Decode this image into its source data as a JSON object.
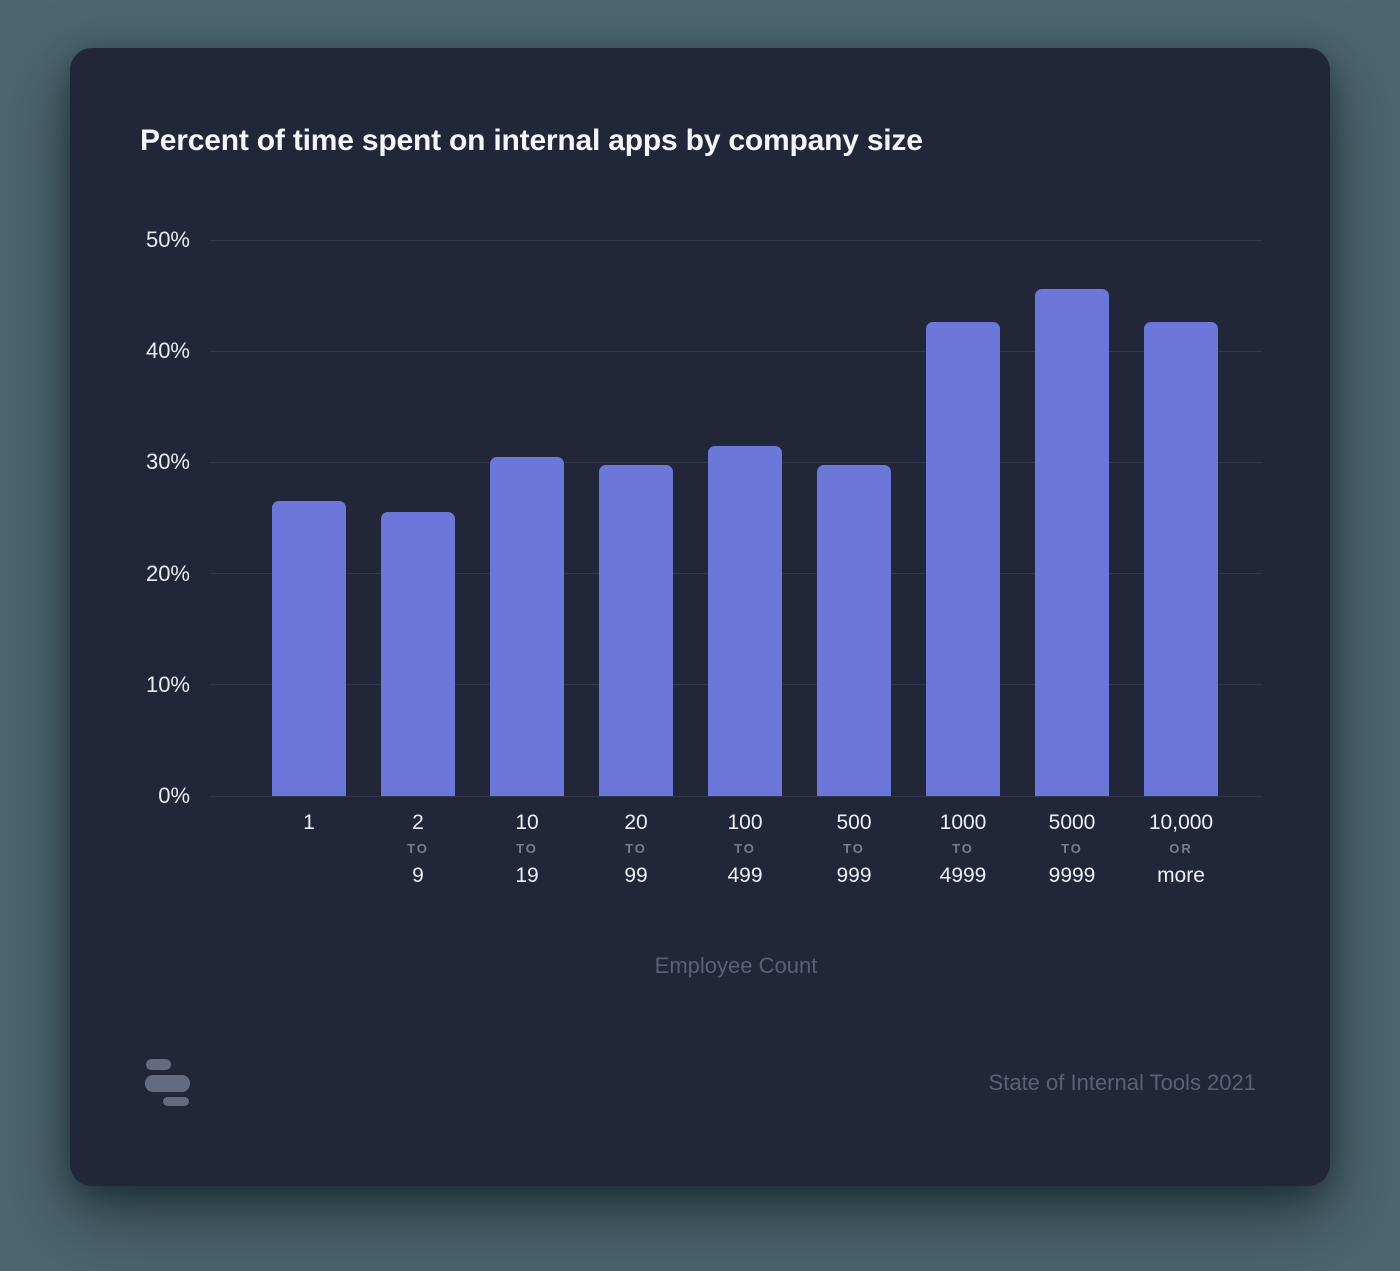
{
  "card": {
    "title": "Percent of time spent on internal apps by company size",
    "source": "State of Internal Tools 2021",
    "logo_icon": "retool-logo-icon"
  },
  "chart_data": {
    "type": "bar",
    "title": "Percent of time spent on internal apps by company size",
    "xlabel": "Employee Count",
    "ylabel": "Percent of time spent on internal apps",
    "ylim": [
      0,
      50
    ],
    "ytick_labels": [
      "0%",
      "10%",
      "20%",
      "30%",
      "40%",
      "50%"
    ],
    "grid": true,
    "legend": "none",
    "categories": [
      {
        "line1": "1",
        "connector": "",
        "line2": ""
      },
      {
        "line1": "2",
        "connector": "TO",
        "line2": "9"
      },
      {
        "line1": "10",
        "connector": "TO",
        "line2": "19"
      },
      {
        "line1": "20",
        "connector": "TO",
        "line2": "99"
      },
      {
        "line1": "100",
        "connector": "TO",
        "line2": "499"
      },
      {
        "line1": "500",
        "connector": "TO",
        "line2": "999"
      },
      {
        "line1": "1000",
        "connector": "TO",
        "line2": "4999"
      },
      {
        "line1": "5000",
        "connector": "TO",
        "line2": "9999"
      },
      {
        "line1": "10,000",
        "connector": "OR",
        "line2": "more"
      }
    ],
    "values": [
      26.5,
      25.5,
      30.5,
      29.8,
      31.5,
      29.8,
      42.6,
      45.6,
      42.6
    ],
    "bar_color": "#6B78D9"
  },
  "colors": {
    "page_bg": "#4C6670",
    "card_bg": "#222639",
    "grid_line": "#31364B",
    "text_primary": "#F3F5F9",
    "text_muted": "#787E92",
    "axis_label": "#5A6078",
    "bar_color": "#6B78D9",
    "logo_color": "#636B80"
  }
}
